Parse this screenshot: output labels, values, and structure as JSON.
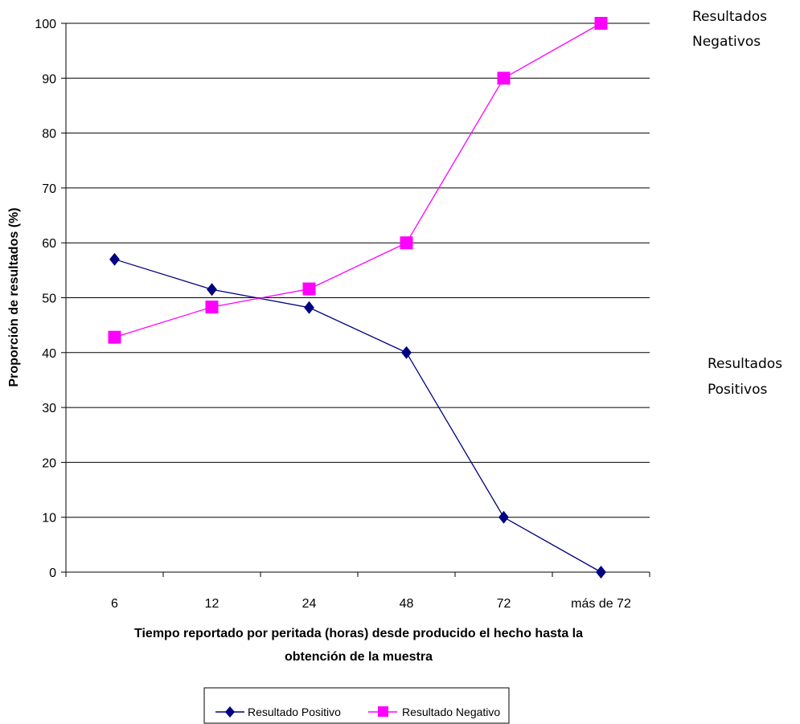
{
  "chart_data": {
    "type": "line",
    "title": "",
    "xlabel": "Tiempo reportado por peritada (horas) desde producido el hecho hasta la obtención de la muestra",
    "xlabel_lines": [
      "Tiempo reportado por peritada (horas) desde producido el hecho hasta la",
      "obtención de la muestra"
    ],
    "ylabel": "Proporción de resultados (%)",
    "ylim": [
      0,
      100
    ],
    "yticks": [
      0,
      10,
      20,
      30,
      40,
      50,
      60,
      70,
      80,
      90,
      100
    ],
    "categories": [
      "6",
      "12",
      "24",
      "48",
      "72",
      "más de 72"
    ],
    "grid": true,
    "legend_position": "bottom",
    "series": [
      {
        "name": "Resultado Positivo",
        "values": [
          57,
          51.5,
          48.2,
          40,
          10,
          0
        ],
        "color": "#000080",
        "marker": "diamond"
      },
      {
        "name": "Resultado Negativo",
        "values": [
          42.8,
          48.3,
          51.6,
          60,
          90,
          100
        ],
        "color": "#ff00ff",
        "marker": "square"
      }
    ],
    "annotations": [
      {
        "lines": [
          "Resultados",
          "Negativos"
        ],
        "side": "right-top"
      },
      {
        "lines": [
          "Resultados",
          "Positivos"
        ],
        "side": "right-middle"
      }
    ]
  }
}
